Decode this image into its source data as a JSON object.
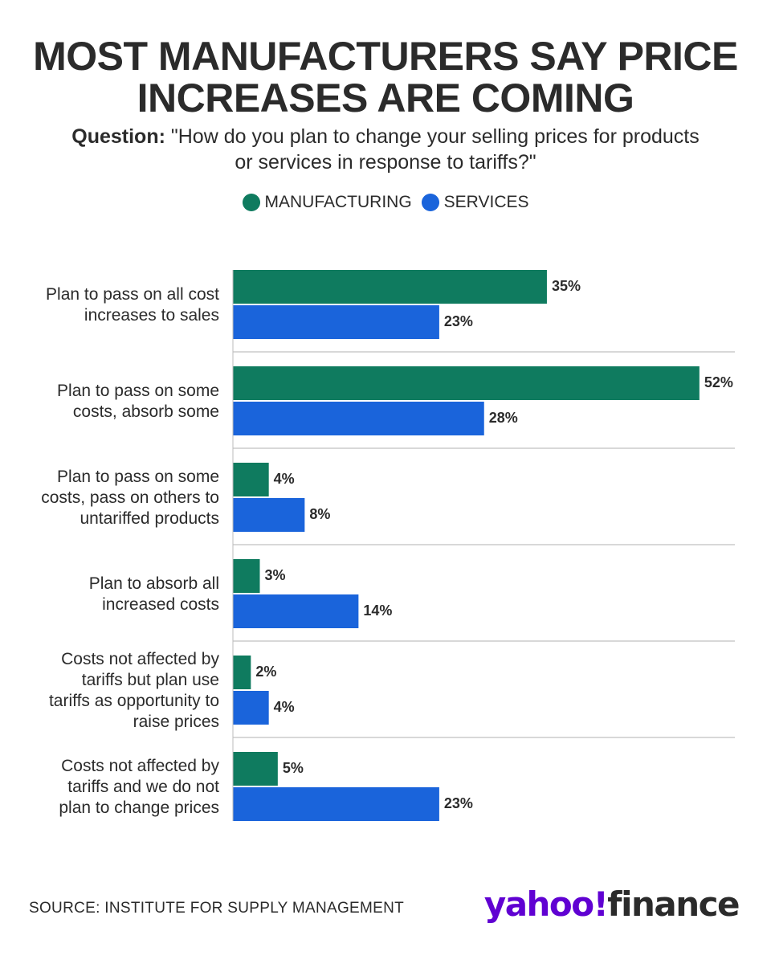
{
  "title": {
    "line1": "MOST MANUFACTURERS SAY PRICE",
    "line2": "INCREASES ARE COMING"
  },
  "question": {
    "label": "Question:",
    "line1": " \"How do you plan to change your selling prices for products",
    "line2": "or services in response to tariffs?\""
  },
  "source": "SOURCE: INSTITUTE FOR SUPPLY MANAGEMENT",
  "logo": {
    "part1": "yahoo!",
    "part2": "finance"
  },
  "colors": {
    "manufacturing": "#0f7b5f",
    "services": "#1a64db",
    "divider": "#cccccc",
    "text": "#2b2b2b"
  },
  "chart_data": {
    "type": "bar",
    "orientation": "horizontal",
    "categories": [
      [
        "Plan to pass on all cost",
        "increases to sales"
      ],
      [
        "Plan to pass on some",
        "costs, absorb some"
      ],
      [
        "Plan to pass on some",
        "costs, pass on others to",
        "untariffed products"
      ],
      [
        "Plan to absorb all",
        "increased costs"
      ],
      [
        "Costs not affected by",
        "tariffs but plan use",
        "tariffs as opportunity to",
        "raise prices"
      ],
      [
        "Costs not affected by",
        "tariffs and we do not",
        "plan to change prices"
      ]
    ],
    "series": [
      {
        "name": "MANUFACTURING",
        "values": [
          35,
          52,
          4,
          3,
          2,
          5
        ]
      },
      {
        "name": "SERVICES",
        "values": [
          23,
          28,
          8,
          14,
          4,
          23
        ]
      }
    ],
    "value_suffix": "%",
    "legend_position": "top-center",
    "grid": false
  }
}
